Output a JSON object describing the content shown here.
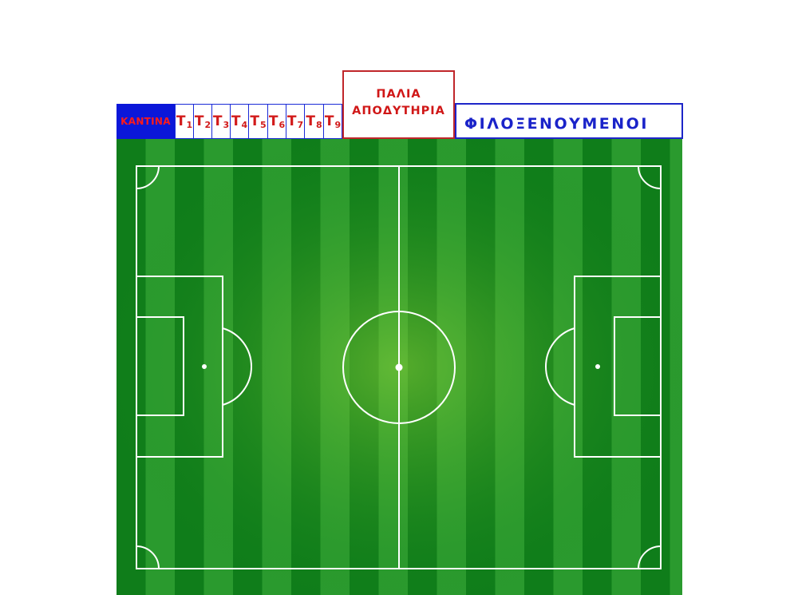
{
  "header": {
    "kantina_label": "ΚΑΝΤΙΝΑ",
    "tables": [
      {
        "letter": "T",
        "number": "1"
      },
      {
        "letter": "T",
        "number": "2"
      },
      {
        "letter": "T",
        "number": "3"
      },
      {
        "letter": "T",
        "number": "4"
      },
      {
        "letter": "T",
        "number": "5"
      },
      {
        "letter": "T",
        "number": "6"
      },
      {
        "letter": "T",
        "number": "7"
      },
      {
        "letter": "T",
        "number": "8"
      },
      {
        "letter": "T",
        "number": "9"
      }
    ],
    "old_changing_rooms_line1": "ΠΑΛΙΑ",
    "old_changing_rooms_line2": "ΑΠΟΔΥΤΗΡΙΑ",
    "away_fans_label": "ΦΙΛΟΞΕΝΟΥΜΕΝΟΙ"
  },
  "colors": {
    "kantina_bg": "#0b17d9",
    "kantina_text": "#ff1b1b",
    "table_text": "#d21a1a",
    "table_border": "#1a2ad7",
    "old_rooms_border": "#c0262a",
    "old_rooms_text": "#d01717",
    "away_border": "#1d25c8",
    "away_text": "#1a23c9",
    "grass_dark": "#0f7d1a",
    "grass_light": "#2a9a2e",
    "grass_center": "#5fb52e",
    "lines": "#ffffff"
  },
  "pitch": {
    "feature": "football-pitch"
  }
}
